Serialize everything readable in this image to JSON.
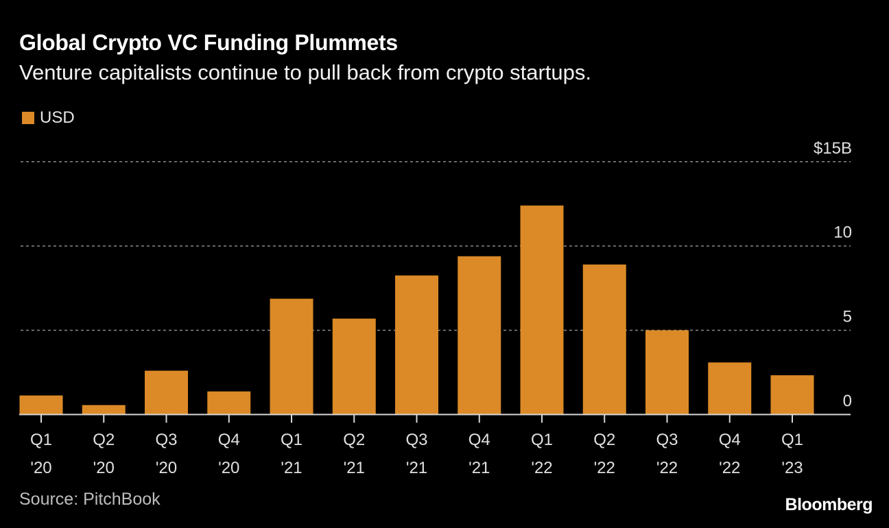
{
  "chart_data": {
    "type": "bar",
    "title": "Global Crypto VC Funding Plummets",
    "subtitle": "Venture capitalists continue to pull back from crypto startups.",
    "categories": [
      [
        "Q1",
        "'20"
      ],
      [
        "Q2",
        "'20"
      ],
      [
        "Q3",
        "'20"
      ],
      [
        "Q4",
        "'20"
      ],
      [
        "Q1",
        "'21"
      ],
      [
        "Q2",
        "'21"
      ],
      [
        "Q3",
        "'21"
      ],
      [
        "Q4",
        "'21"
      ],
      [
        "Q1",
        "'22"
      ],
      [
        "Q2",
        "'22"
      ],
      [
        "Q3",
        "'22"
      ],
      [
        "Q4",
        "'22"
      ],
      [
        "Q1",
        "'23"
      ]
    ],
    "series": [
      {
        "name": "USD",
        "color": "#db8a27",
        "values": [
          1.13,
          0.56,
          2.6,
          1.37,
          6.87,
          5.69,
          8.25,
          9.39,
          12.4,
          8.9,
          5.0,
          3.09,
          2.33
        ]
      }
    ],
    "ylim": [
      0,
      15
    ],
    "yticks": [
      0,
      5,
      10,
      15
    ],
    "ytick_labels": [
      "0",
      "5",
      "10",
      "$15B"
    ],
    "y_axis_position": "right",
    "grid": true,
    "legend": "top-left",
    "source": "Source: PitchBook",
    "brand": "Bloomberg"
  }
}
